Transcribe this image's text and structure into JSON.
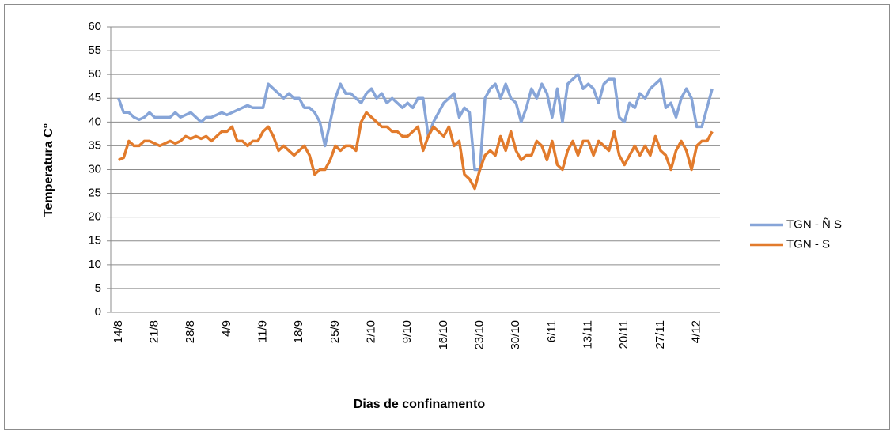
{
  "chart_data": {
    "type": "line",
    "y_label": "Temperatura C°",
    "x_label": "Dias de confinamento",
    "categories": [
      null,
      "14/8",
      null,
      null,
      null,
      null,
      null,
      null,
      "21/8",
      null,
      null,
      null,
      null,
      null,
      null,
      "28/8",
      null,
      null,
      null,
      null,
      null,
      null,
      "4/9",
      null,
      null,
      null,
      null,
      null,
      null,
      "11/9",
      null,
      null,
      null,
      null,
      null,
      null,
      "18/9",
      null,
      null,
      null,
      null,
      null,
      null,
      "25/9",
      null,
      null,
      null,
      null,
      null,
      null,
      "2/10",
      null,
      null,
      null,
      null,
      null,
      null,
      "9/10",
      null,
      null,
      null,
      null,
      null,
      null,
      "16/10",
      null,
      null,
      null,
      null,
      null,
      null,
      "23/10",
      null,
      null,
      null,
      null,
      null,
      null,
      "30/10",
      null,
      null,
      null,
      null,
      null,
      null,
      "6/11",
      null,
      null,
      null,
      null,
      null,
      null,
      "13/11",
      null,
      null,
      null,
      null,
      null,
      null,
      "20/11",
      null,
      null,
      null,
      null,
      null,
      null,
      "27/11",
      null,
      null,
      null,
      null,
      null,
      null,
      "4/12",
      null,
      null,
      null,
      null
    ],
    "series": [
      {
        "name": "TGN - Ñ S",
        "color": "#87a5d8",
        "values": [
          null,
          45,
          42,
          42,
          41,
          40.5,
          41,
          42,
          41,
          41,
          41,
          41,
          42,
          41,
          41.5,
          42,
          41,
          40,
          41,
          41,
          41.5,
          42,
          41.5,
          42,
          42.5,
          43,
          43.5,
          43,
          43,
          43,
          48,
          47,
          46,
          45,
          46,
          45,
          45,
          43,
          43,
          42,
          40,
          35,
          40,
          45,
          48,
          46,
          46,
          45,
          44,
          46,
          47,
          45,
          46,
          44,
          45,
          44,
          43,
          44,
          43,
          45,
          45,
          37,
          40,
          42,
          44,
          45,
          46,
          41,
          43,
          42,
          30,
          30,
          45,
          47,
          48,
          45,
          48,
          45,
          44,
          40,
          43,
          47,
          45,
          48,
          46,
          41,
          47,
          40,
          48,
          49,
          50,
          47,
          48,
          47,
          44,
          48,
          49,
          49,
          41,
          40,
          44,
          43,
          46,
          45,
          47,
          48,
          49,
          43,
          44,
          41,
          45,
          47,
          45,
          39,
          39,
          43,
          47,
          null
        ]
      },
      {
        "name": "TGN - S",
        "color": "#e27b2c",
        "values": [
          null,
          32,
          32.5,
          36,
          35,
          35,
          36,
          36,
          35.5,
          35,
          35.5,
          36,
          35.5,
          36,
          37,
          36.5,
          37,
          36.5,
          37,
          36,
          37,
          38,
          38,
          39,
          36,
          36,
          35,
          36,
          36,
          38,
          39,
          37,
          34,
          35,
          34,
          33,
          34,
          35,
          33,
          29,
          30,
          30,
          32,
          35,
          34,
          35,
          35,
          34,
          40,
          42,
          41,
          40,
          39,
          39,
          38,
          38,
          37,
          37,
          38,
          39,
          34,
          37,
          39,
          38,
          37,
          39,
          35,
          36,
          29,
          28,
          26,
          30,
          33,
          34,
          33,
          37,
          34,
          38,
          34,
          32,
          33,
          33,
          36,
          35,
          32,
          36,
          31,
          30,
          34,
          36,
          33,
          36,
          36,
          33,
          36,
          35,
          34,
          38,
          33,
          31,
          33,
          35,
          33,
          35,
          33,
          37,
          34,
          33,
          30,
          34,
          36,
          34,
          30,
          35,
          36,
          36,
          38,
          null
        ]
      }
    ],
    "ylim": [
      0,
      60
    ],
    "yticks": [
      0,
      5,
      10,
      15,
      20,
      25,
      30,
      35,
      40,
      45,
      50,
      55,
      60
    ],
    "grid": true,
    "legend": "right"
  }
}
